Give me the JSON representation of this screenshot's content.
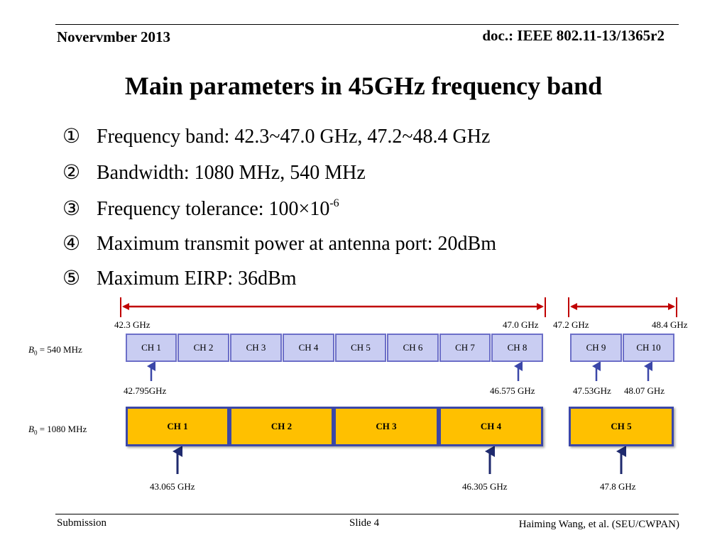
{
  "header": {
    "date": "Novervmber 2013",
    "doc": "doc.: IEEE 802.11-13/1365r2"
  },
  "title": "Main parameters in 45GHz frequency band",
  "bullets": [
    {
      "num": "①",
      "text": "Frequency band: 42.3~47.0 GHz, 47.2~48.4 GHz"
    },
    {
      "num": "②",
      "text": "Bandwidth: 1080 MHz,  540 MHz"
    },
    {
      "num": "③",
      "text": "Frequency tolerance: 100×10",
      "sup": "-6"
    },
    {
      "num": "④",
      "text": "Maximum transmit power at antenna port: 20dBm"
    },
    {
      "num": "⑤",
      "text": "Maximum EIRP: 36dBm"
    }
  ],
  "band_edges": {
    "e1": "42.3 GHz",
    "e2": "47.0 GHz",
    "e3": "47.2 GHz",
    "e4": "48.4 GHz"
  },
  "small_band": {
    "label_var": "B",
    "label_sub": "0",
    "label_value": "= 540 MHz",
    "channels": [
      "CH 1",
      "CH 2",
      "CH 3",
      "CH 4",
      "CH 5",
      "CH 6",
      "CH 7",
      "CH 8",
      "CH 9",
      "CH 10"
    ],
    "centers": [
      "42.795GHz",
      "46.575 GHz",
      "47.53GHz",
      "48.07 GHz"
    ]
  },
  "large_band": {
    "label_var": "B",
    "label_sub": "0",
    "label_value": "= 1080 MHz",
    "channels": [
      "CH 1",
      "CH 2",
      "CH 3",
      "CH 4",
      "CH 5"
    ],
    "centers": [
      "43.065 GHz",
      "46.305 GHz",
      "47.8 GHz"
    ]
  },
  "colors": {
    "range_arrow": "#c00000",
    "small_fill": "#c9cdf2",
    "small_border": "#6c6fc8",
    "large_fill": "#ffc000",
    "large_border": "#3b47a8",
    "pointer": "#3b47a8"
  },
  "footer": {
    "left": "Submission",
    "center": "Slide 4",
    "right": "Haiming Wang, et al. (SEU/CWPAN)"
  }
}
